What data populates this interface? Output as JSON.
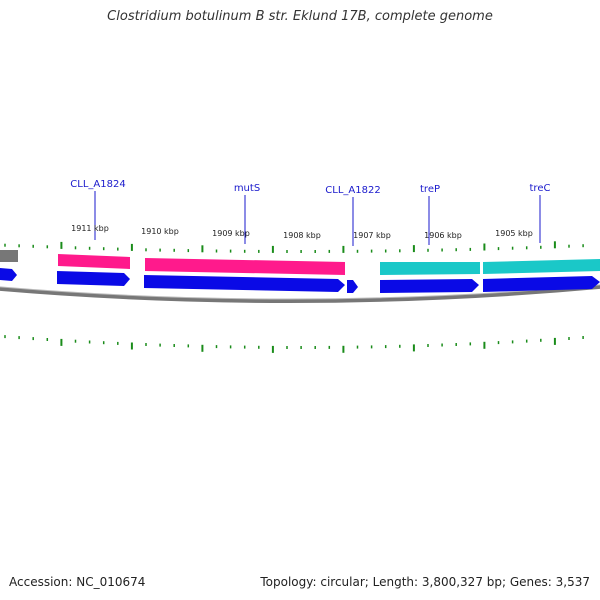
{
  "title": "Clostridium botulinum B str. Eklund 17B, complete genome",
  "footer": {
    "accession": "Accession: NC_010674",
    "summary": "Topology: circular; Length: 3,800,327 bp; Genes: 3,537"
  },
  "colors": {
    "gene_pink": "#ff1a8c",
    "gene_cyan": "#1ac8c8",
    "cds_blue": "#0a0ae6",
    "backbone": "#888888",
    "tick_green": "#1a8c1a",
    "label_blue": "#1a1acc"
  },
  "tick_labels": [
    "1911 kbp",
    "1910 kbp",
    "1909 kbp",
    "1908 kbp",
    "1907 kbp",
    "1906 kbp",
    "1905 kbp"
  ],
  "gene_labels": [
    "CLL_A1824",
    "mutS",
    "CLL_A1822",
    "treP",
    "treC"
  ]
}
